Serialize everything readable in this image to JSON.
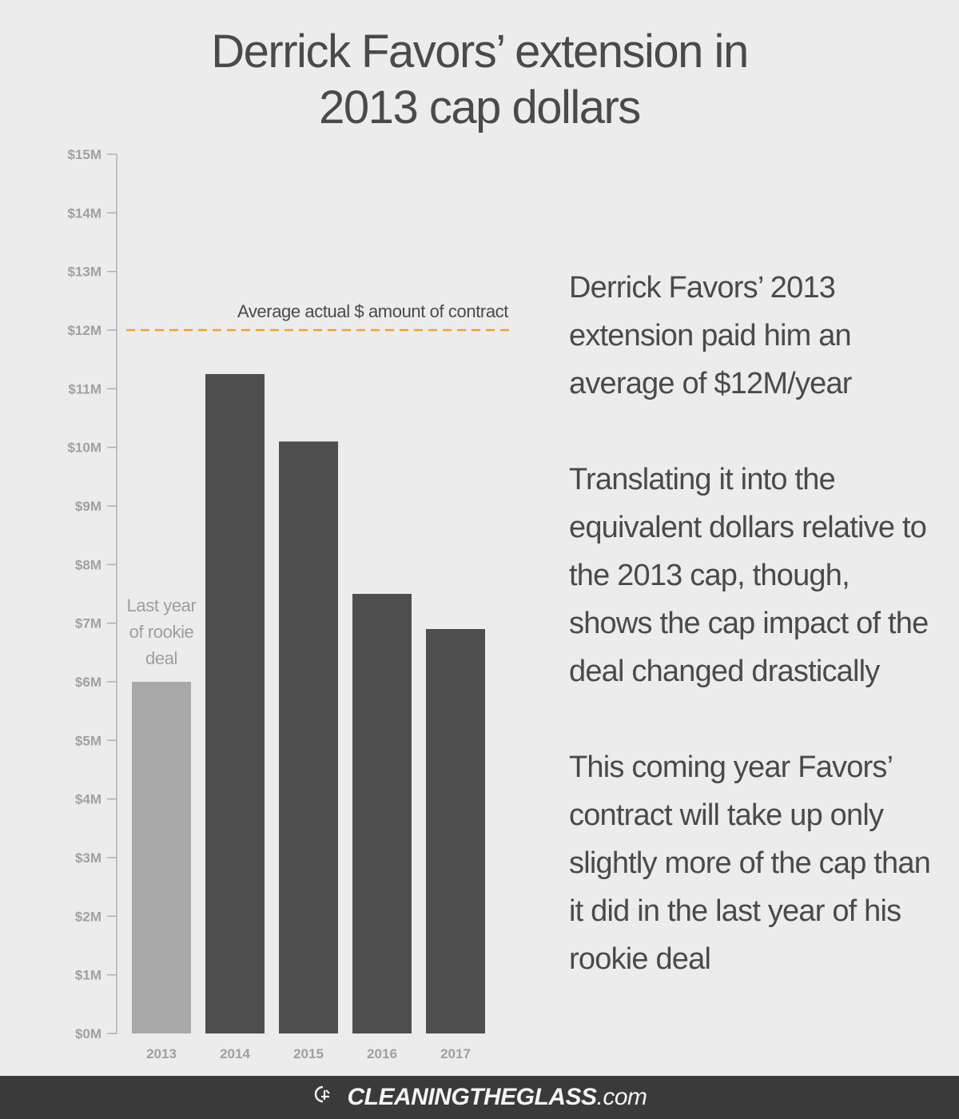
{
  "chart_data": {
    "type": "bar",
    "title": "Derrick Favors’ extension in 2013 cap dollars",
    "title_lines": [
      "Derrick Favors’ extension in",
      "2013 cap dollars"
    ],
    "categories": [
      "2013",
      "2014",
      "2015",
      "2016",
      "2017"
    ],
    "values": [
      6.0,
      11.25,
      10.1,
      7.5,
      6.9
    ],
    "unit": "$M",
    "ylim": [
      0,
      15
    ],
    "yticks": [
      "$0M",
      "$1M",
      "$2M",
      "$3M",
      "$4M",
      "$5M",
      "$6M",
      "$7M",
      "$8M",
      "$9M",
      "$10M",
      "$11M",
      "$12M",
      "$13M",
      "$14M",
      "$15M"
    ],
    "xlabel": "",
    "ylabel": "",
    "grid": false,
    "bar_colors": [
      "#a8a8a8",
      "#4e4e4e",
      "#4e4e4e",
      "#4e4e4e",
      "#4e4e4e"
    ],
    "reference_line": {
      "value": 12,
      "label": "Average actual $ amount of contract",
      "color": "#f0a030"
    },
    "annotation": {
      "category": "2013",
      "lines": [
        "Last year",
        "of rookie",
        "deal"
      ]
    }
  },
  "notes": [
    "Derrick Favors’ 2013 extension paid him an average of $12M/year",
    "Translating it into the equivalent dollars relative to the 2013 cap, though, shows the cap impact of the deal changed drastically",
    "This coming year Favors’ contract will take up only slightly more of the cap than it did in the last year of his rookie deal"
  ],
  "footer": {
    "brand": "CLEANINGTHEGLASS",
    "suffix": ".com",
    "logo_icon": "ctg-logo-icon"
  }
}
